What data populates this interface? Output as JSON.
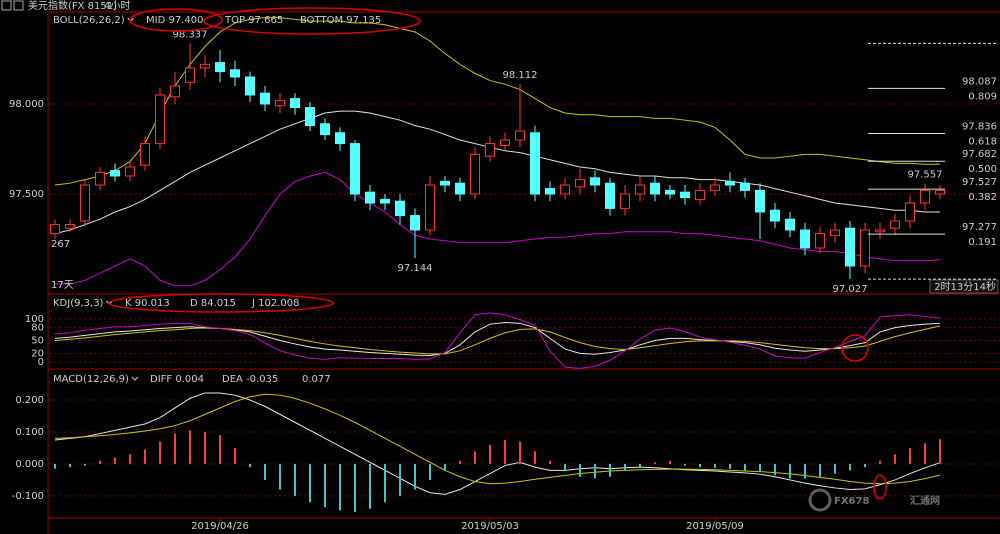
{
  "header": {
    "symbol": "美元指数(FX 8151)",
    "period": "4小时"
  },
  "chart_data": [
    {
      "type": "candlestick",
      "title": "BOLL(26,26,2)",
      "open": [
        97.28,
        97.31,
        97.35,
        97.55,
        97.63,
        97.6,
        97.66,
        97.78,
        98.04,
        98.12,
        98.2,
        98.23,
        98.19,
        98.15,
        98.06,
        97.99,
        98.03,
        97.98,
        97.89,
        97.84,
        97.78,
        97.51,
        97.47,
        97.46,
        97.38,
        97.3,
        97.57,
        97.56,
        97.5,
        97.71,
        97.77,
        97.8,
        97.84,
        97.53,
        97.5,
        97.54,
        97.59,
        97.56,
        97.42,
        97.5,
        97.56,
        97.52,
        97.51,
        97.47,
        97.52,
        97.57,
        97.56,
        97.52,
        97.41,
        97.36,
        97.3,
        97.2,
        97.27,
        97.31,
        97.1,
        97.29,
        97.31,
        97.35,
        97.45,
        97.5
      ],
      "high": [
        97.36,
        97.36,
        97.58,
        97.65,
        97.67,
        97.69,
        97.82,
        98.09,
        98.18,
        98.337,
        98.27,
        98.3,
        98.24,
        98.18,
        98.1,
        98.06,
        98.06,
        98.01,
        97.92,
        97.87,
        97.8,
        97.55,
        97.5,
        97.5,
        97.42,
        97.6,
        97.6,
        97.59,
        97.76,
        97.82,
        97.84,
        98.112,
        97.88,
        97.57,
        97.59,
        97.64,
        97.63,
        97.59,
        97.55,
        97.6,
        97.6,
        97.55,
        97.55,
        97.56,
        97.59,
        97.62,
        97.59,
        97.56,
        97.45,
        97.4,
        97.34,
        97.32,
        97.34,
        97.35,
        97.34,
        97.34,
        97.39,
        97.49,
        97.557,
        97.55
      ],
      "low": [
        97.25,
        97.29,
        97.32,
        97.52,
        97.57,
        97.57,
        97.63,
        97.75,
        98.0,
        98.08,
        98.15,
        98.12,
        98.1,
        98.01,
        97.96,
        97.95,
        97.94,
        97.85,
        97.8,
        97.74,
        97.46,
        97.41,
        97.41,
        97.33,
        97.144,
        97.27,
        97.51,
        97.46,
        97.47,
        97.68,
        97.74,
        97.76,
        97.46,
        97.46,
        97.47,
        97.5,
        97.51,
        97.38,
        97.38,
        97.46,
        97.46,
        97.47,
        97.44,
        97.44,
        97.49,
        97.51,
        97.48,
        97.25,
        97.31,
        97.26,
        97.16,
        97.17,
        97.23,
        97.027,
        97.06,
        97.25,
        97.27,
        97.31,
        97.41,
        97.47
      ],
      "close": [
        97.33,
        97.33,
        97.55,
        97.62,
        97.6,
        97.65,
        97.78,
        98.05,
        98.1,
        98.2,
        98.22,
        98.18,
        98.15,
        98.05,
        98.0,
        98.02,
        97.98,
        97.88,
        97.83,
        97.78,
        97.5,
        97.45,
        97.45,
        97.38,
        97.3,
        97.55,
        97.55,
        97.5,
        97.72,
        97.78,
        97.8,
        97.85,
        97.5,
        97.5,
        97.55,
        97.58,
        97.55,
        97.42,
        97.5,
        97.55,
        97.5,
        97.5,
        97.48,
        97.52,
        97.55,
        97.55,
        97.52,
        97.4,
        97.35,
        97.3,
        97.2,
        97.28,
        97.3,
        97.1,
        97.3,
        97.3,
        97.35,
        97.45,
        97.52,
        97.52
      ],
      "up_color": "#ff3232",
      "down_color": "#54ffff",
      "series": [
        {
          "name": "MID 97.400",
          "color": "#e0e0e0",
          "values": [
            97.28,
            97.3,
            97.33,
            97.36,
            97.4,
            97.43,
            97.47,
            97.52,
            97.57,
            97.62,
            97.66,
            97.7,
            97.74,
            97.78,
            97.82,
            97.86,
            97.89,
            97.92,
            97.95,
            97.96,
            97.96,
            97.95,
            97.93,
            97.91,
            97.88,
            97.86,
            97.83,
            97.8,
            97.78,
            97.76,
            97.74,
            97.73,
            97.71,
            97.69,
            97.67,
            97.65,
            97.64,
            97.62,
            97.61,
            97.6,
            97.6,
            97.59,
            97.59,
            97.58,
            97.58,
            97.57,
            97.56,
            97.55,
            97.53,
            97.51,
            97.49,
            97.47,
            97.45,
            97.44,
            97.43,
            97.42,
            97.41,
            97.41,
            97.4,
            97.4
          ]
        },
        {
          "name": "TOP 97.665",
          "color": "#c8c800",
          "values": [
            97.55,
            97.56,
            97.58,
            97.6,
            97.63,
            97.68,
            97.78,
            97.95,
            98.1,
            98.22,
            98.32,
            98.4,
            98.45,
            98.47,
            98.48,
            98.48,
            98.47,
            98.46,
            98.46,
            98.46,
            98.45,
            98.45,
            98.44,
            98.42,
            98.4,
            98.35,
            98.28,
            98.22,
            98.17,
            98.13,
            98.11,
            98.08,
            98.03,
            97.98,
            97.95,
            97.94,
            97.94,
            97.93,
            97.93,
            97.93,
            97.92,
            97.92,
            97.91,
            97.9,
            97.87,
            97.8,
            97.72,
            97.7,
            97.7,
            97.71,
            97.72,
            97.72,
            97.71,
            97.7,
            97.69,
            97.68,
            97.67,
            97.67,
            97.665,
            97.665
          ]
        },
        {
          "name": "BOTTOM 97.135",
          "color": "#d000d0",
          "values": [
            97.0,
            97.0,
            97.02,
            97.06,
            97.1,
            97.14,
            97.1,
            97.02,
            96.99,
            96.99,
            97.02,
            97.08,
            97.15,
            97.25,
            97.38,
            97.5,
            97.57,
            97.6,
            97.62,
            97.58,
            97.5,
            97.45,
            97.4,
            97.33,
            97.27,
            97.25,
            97.24,
            97.23,
            97.23,
            97.23,
            97.23,
            97.24,
            97.25,
            97.26,
            97.26,
            97.27,
            97.28,
            97.28,
            97.29,
            97.29,
            97.29,
            97.29,
            97.28,
            97.28,
            97.27,
            97.26,
            97.25,
            97.24,
            97.22,
            97.2,
            97.19,
            97.18,
            97.18,
            97.17,
            97.15,
            97.14,
            97.13,
            97.13,
            97.13,
            97.135
          ]
        }
      ],
      "ylim": [
        96.95,
        98.511
      ],
      "yticks": [
        {
          "value": 97.5,
          "label": "97.500"
        },
        {
          "value": 98,
          "label": "98.000"
        }
      ],
      "grid": true,
      "annotations": [
        {
          "label": "98.337",
          "value": 98.337
        },
        {
          "label": "98.112",
          "value": 98.112
        },
        {
          "label": "97.144",
          "value": 97.144
        },
        {
          "label": "97.027",
          "value": 97.027
        },
        {
          "label": "97.557",
          "value": 97.557
        }
      ],
      "fib_levels": [
        {
          "price": 98.087,
          "ratio": "0.809"
        },
        {
          "price": 97.836,
          "ratio": "0.618"
        },
        {
          "price": 97.682,
          "ratio": "0.500"
        },
        {
          "price": 97.527,
          "ratio": "0.382"
        },
        {
          "price": 97.277,
          "ratio": "0.191"
        }
      ],
      "fib_range": [
        97.027,
        98.337
      ],
      "left_edge_label": "267",
      "period_count": "17天",
      "countdown": "2时13分14秒"
    },
    {
      "type": "line",
      "title": "KDJ(9,3,3)",
      "series": [
        {
          "name": "K 90.013",
          "color": "#e8e8e8",
          "values": [
            55,
            58,
            62,
            66,
            70,
            72,
            75,
            78,
            80,
            82,
            80,
            78,
            75,
            70,
            60,
            50,
            42,
            35,
            30,
            28,
            25,
            22,
            20,
            18,
            16,
            15,
            20,
            40,
            70,
            88,
            92,
            90,
            80,
            55,
            30,
            20,
            18,
            22,
            28,
            40,
            50,
            55,
            55,
            52,
            50,
            48,
            45,
            40,
            32,
            28,
            25,
            28,
            32,
            38,
            45,
            70,
            80,
            85,
            88,
            90.013
          ]
        },
        {
          "name": "D 84.015",
          "color": "#c8c800",
          "values": [
            50,
            53,
            56,
            60,
            64,
            67,
            70,
            73,
            75,
            78,
            79,
            78,
            76,
            73,
            68,
            62,
            55,
            48,
            42,
            37,
            33,
            29,
            26,
            23,
            21,
            19,
            19,
            26,
            40,
            55,
            68,
            76,
            77,
            70,
            57,
            45,
            36,
            31,
            29,
            33,
            38,
            43,
            47,
            49,
            49,
            49,
            48,
            45,
            41,
            37,
            33,
            31,
            31,
            33,
            37,
            48,
            59,
            68,
            76,
            84.015
          ]
        },
        {
          "name": "J 102.008",
          "color": "#d000d0",
          "values": [
            65,
            68,
            74,
            78,
            82,
            82,
            85,
            88,
            90,
            90,
            82,
            78,
            73,
            64,
            44,
            26,
            16,
            9,
            6,
            10,
            9,
            8,
            8,
            8,
            6,
            7,
            22,
            68,
            110,
            114,
            110,
            98,
            86,
            25,
            -12,
            -15,
            -10,
            4,
            26,
            54,
            74,
            79,
            71,
            58,
            52,
            46,
            39,
            30,
            14,
            10,
            9,
            22,
            34,
            48,
            61,
            105,
            108,
            110,
            106,
            102.008
          ]
        }
      ],
      "ylim": [
        -14,
        121
      ],
      "yticks": [
        0,
        20,
        50,
        80,
        100
      ],
      "grid": true
    },
    {
      "type": "line",
      "title": "MACD(12,26,9)",
      "categories": [
        null,
        null,
        null,
        null,
        null,
        null,
        null,
        null,
        null,
        null,
        null,
        "2019/04/26",
        null,
        null,
        null,
        null,
        null,
        null,
        null,
        null,
        null,
        null,
        null,
        null,
        null,
        null,
        null,
        null,
        null,
        "2019/05/03",
        null,
        null,
        null,
        null,
        null,
        null,
        null,
        null,
        null,
        null,
        null,
        null,
        null,
        null,
        "2019/05/09",
        null,
        null,
        null,
        null,
        null,
        null,
        null,
        null,
        null,
        null,
        null,
        null,
        null,
        null,
        null
      ],
      "series": [
        {
          "name": "DIFF 0.004",
          "color": "#e8e8e8",
          "values": [
            0.075,
            0.08,
            0.085,
            0.095,
            0.105,
            0.115,
            0.125,
            0.145,
            0.175,
            0.205,
            0.222,
            0.222,
            0.215,
            0.2,
            0.18,
            0.155,
            0.13,
            0.105,
            0.08,
            0.055,
            0.03,
            0.005,
            -0.02,
            -0.045,
            -0.07,
            -0.09,
            -0.095,
            -0.08,
            -0.055,
            -0.03,
            -0.005,
            0.005,
            -0.01,
            -0.02,
            -0.02,
            -0.015,
            -0.012,
            -0.015,
            -0.012,
            -0.01,
            -0.012,
            -0.015,
            -0.018,
            -0.02,
            -0.022,
            -0.025,
            -0.028,
            -0.032,
            -0.04,
            -0.05,
            -0.06,
            -0.068,
            -0.075,
            -0.08,
            -0.078,
            -0.065,
            -0.05,
            -0.03,
            -0.012,
            0.004
          ]
        },
        {
          "name": "DEA -0.035",
          "color": "#c8c800",
          "values": [
            0.08,
            0.082,
            0.085,
            0.088,
            0.092,
            0.097,
            0.103,
            0.11,
            0.12,
            0.135,
            0.155,
            0.175,
            0.195,
            0.21,
            0.218,
            0.215,
            0.205,
            0.19,
            0.172,
            0.152,
            0.13,
            0.105,
            0.08,
            0.055,
            0.03,
            0.005,
            -0.02,
            -0.04,
            -0.055,
            -0.062,
            -0.06,
            -0.055,
            -0.048,
            -0.042,
            -0.036,
            -0.03,
            -0.026,
            -0.022,
            -0.02,
            -0.018,
            -0.017,
            -0.016,
            -0.016,
            -0.017,
            -0.018,
            -0.02,
            -0.022,
            -0.024,
            -0.027,
            -0.031,
            -0.036,
            -0.042,
            -0.048,
            -0.055,
            -0.06,
            -0.062,
            -0.06,
            -0.055,
            -0.046,
            -0.035
          ]
        },
        {
          "name": "0.077",
          "type": "bar",
          "color": "#ff3c3c",
          "negative_color": "#3cc8c8",
          "values": [
            -0.015,
            -0.01,
            -0.005,
            0.01,
            0.02,
            0.03,
            0.045,
            0.07,
            0.095,
            0.105,
            0.1,
            0.09,
            0.05,
            -0.01,
            -0.05,
            -0.08,
            -0.1,
            -0.12,
            -0.135,
            -0.145,
            -0.15,
            -0.14,
            -0.12,
            -0.1,
            -0.08,
            -0.05,
            -0.02,
            0.01,
            0.04,
            0.06,
            0.075,
            0.07,
            0.04,
            0.01,
            -0.02,
            -0.04,
            -0.045,
            -0.04,
            -0.02,
            -0.01,
            0.005,
            0.01,
            -0.005,
            -0.01,
            -0.012,
            -0.015,
            -0.02,
            -0.025,
            -0.035,
            -0.045,
            -0.045,
            -0.04,
            -0.03,
            -0.02,
            -0.01,
            0.01,
            0.03,
            0.05,
            0.065,
            0.077
          ]
        }
      ],
      "ylim": [
        -0.169,
        0.2875
      ],
      "yticks": [
        {
          "value": -0.1,
          "label": "-0.100"
        },
        {
          "value": 0,
          "label": "0.000"
        },
        {
          "value": 0.1,
          "label": "0.100"
        },
        {
          "value": 0.2,
          "label": "0.200"
        }
      ],
      "grid": true
    }
  ],
  "watermark": {
    "brand": "FX678",
    "name": "汇通网"
  }
}
